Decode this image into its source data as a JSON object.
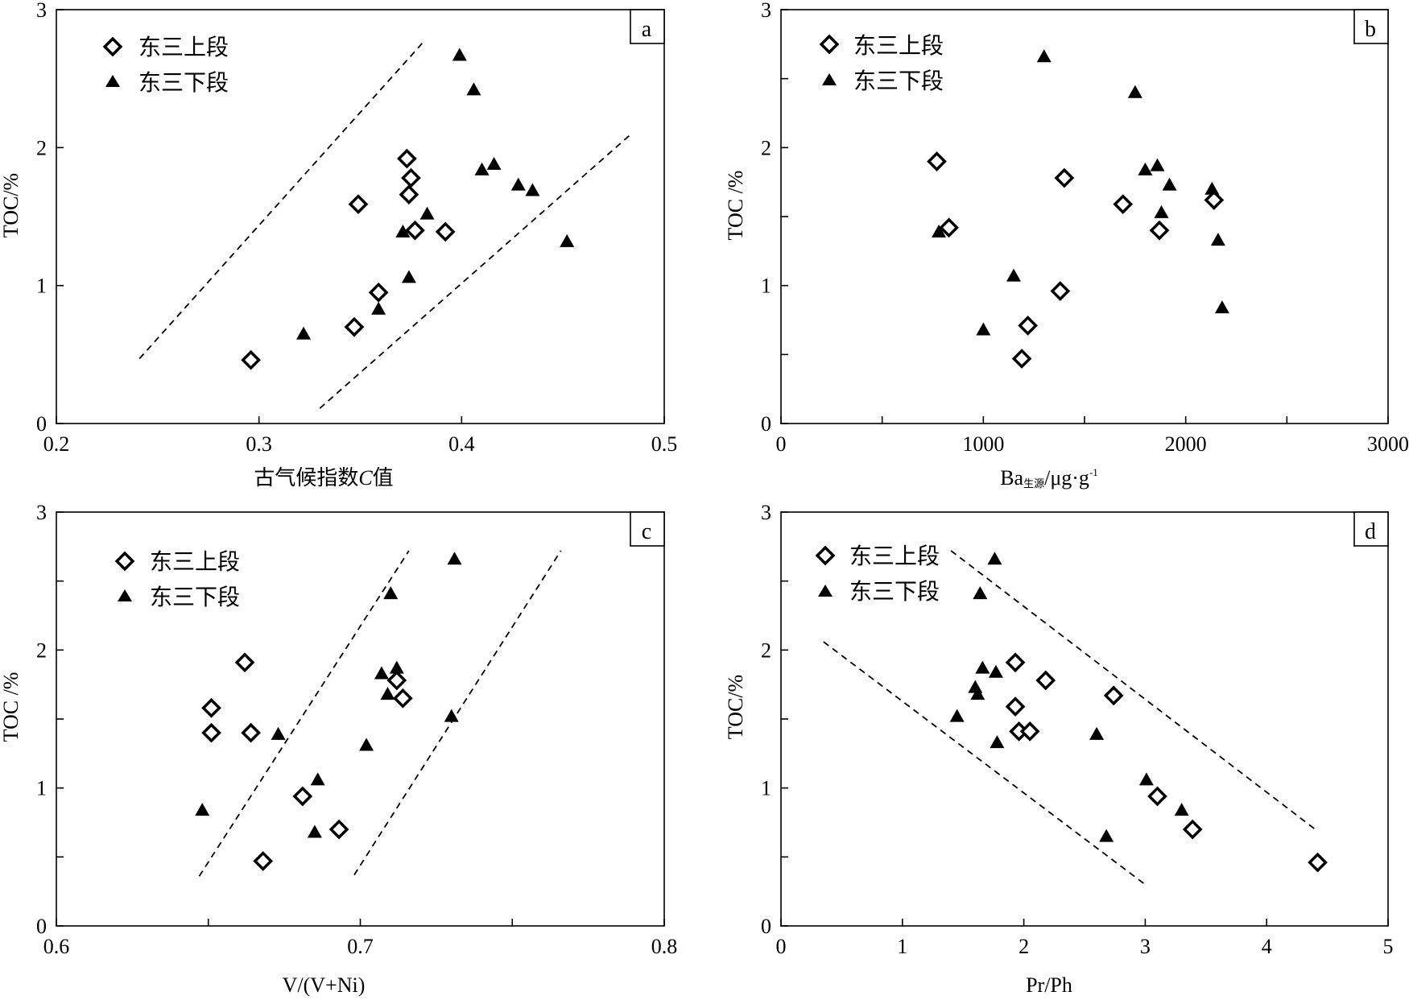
{
  "legend": {
    "upper": "东三上段",
    "lower": "东三下段"
  },
  "colors": {
    "ink": "#000000",
    "background": "#ffffff"
  },
  "chart_data": [
    {
      "type": "scatter",
      "panel": "a",
      "xlabel_main": "古气候指数",
      "xlabel_var": "C",
      "xlabel_tail": "值",
      "ylabel": "TOC/%",
      "xlim": [
        0.2,
        0.5
      ],
      "ylim": [
        0,
        3
      ],
      "xticks": [
        0.2,
        0.3,
        0.4,
        0.5
      ],
      "xticklabels": [
        "0.2",
        "0.3",
        "0.4",
        "0.5"
      ],
      "yticks": [
        0,
        1,
        2,
        3
      ],
      "yticklabels": [
        "0",
        "1",
        "2",
        "3"
      ],
      "legend_position": "top-left",
      "series": [
        {
          "name": "东三上段",
          "marker": "diamond-open",
          "points": [
            [
              0.296,
              0.46
            ],
            [
              0.347,
              0.7
            ],
            [
              0.349,
              1.59
            ],
            [
              0.359,
              0.95
            ],
            [
              0.373,
              1.92
            ],
            [
              0.374,
              1.66
            ],
            [
              0.375,
              1.78
            ],
            [
              0.377,
              1.4
            ],
            [
              0.392,
              1.39
            ]
          ]
        },
        {
          "name": "东三下段",
          "marker": "triangle-filled",
          "points": [
            [
              0.322,
              0.65
            ],
            [
              0.359,
              0.83
            ],
            [
              0.371,
              1.39
            ],
            [
              0.374,
              1.06
            ],
            [
              0.383,
              1.52
            ],
            [
              0.399,
              2.67
            ],
            [
              0.406,
              2.42
            ],
            [
              0.41,
              1.84
            ],
            [
              0.416,
              1.88
            ],
            [
              0.428,
              1.73
            ],
            [
              0.435,
              1.69
            ],
            [
              0.452,
              1.32
            ]
          ]
        }
      ],
      "guide_lines": [
        [
          [
            0.241,
            0.47
          ],
          [
            0.382,
            2.78
          ]
        ],
        [
          [
            0.33,
            0.11
          ],
          [
            0.483,
            2.09
          ]
        ]
      ]
    },
    {
      "type": "scatter",
      "panel": "b",
      "xlabel_main": "Ba",
      "xlabel_sub": "生源",
      "xlabel_tail": "/μg·g",
      "xlabel_sup": "-1",
      "ylabel": "TOC /%",
      "xlim": [
        0,
        3000
      ],
      "ylim": [
        0,
        3
      ],
      "xticks": [
        0,
        1000,
        2000,
        3000
      ],
      "xticklabels": [
        "0",
        "1000",
        "2000",
        "3000"
      ],
      "yticks": [
        0,
        1,
        2,
        3
      ],
      "yticklabels": [
        "0",
        "1",
        "2",
        "3"
      ],
      "minor_xticks": [
        500,
        1500,
        2500
      ],
      "minor_yticks": [
        0.5,
        1.5,
        2.5
      ],
      "legend_position": "top-left",
      "series": [
        {
          "name": "东三上段",
          "marker": "diamond-open",
          "points": [
            [
              770,
              1.9
            ],
            [
              830,
              1.42
            ],
            [
              1190,
              0.47
            ],
            [
              1220,
              0.71
            ],
            [
              1380,
              0.96
            ],
            [
              1400,
              1.78
            ],
            [
              1690,
              1.59
            ],
            [
              1870,
              1.4
            ],
            [
              2140,
              1.62
            ]
          ]
        },
        {
          "name": "东三下段",
          "marker": "triangle-filled",
          "points": [
            [
              780,
              1.39
            ],
            [
              1000,
              0.68
            ],
            [
              1150,
              1.07
            ],
            [
              1300,
              2.66
            ],
            [
              1750,
              2.4
            ],
            [
              1800,
              1.84
            ],
            [
              1860,
              1.87
            ],
            [
              1880,
              1.53
            ],
            [
              1920,
              1.73
            ],
            [
              2130,
              1.7
            ],
            [
              2160,
              1.33
            ],
            [
              2180,
              0.84
            ]
          ]
        }
      ]
    },
    {
      "type": "scatter",
      "panel": "c",
      "xlabel_main": "V/(V+Ni)",
      "ylabel": "TOC /%",
      "xlim": [
        0.6,
        0.8
      ],
      "ylim": [
        0,
        3
      ],
      "xticks": [
        0.6,
        0.7,
        0.8
      ],
      "xticklabels": [
        "0.6",
        "0.7",
        "0.8"
      ],
      "yticks": [
        0,
        1,
        2,
        3
      ],
      "yticklabels": [
        "0",
        "1",
        "2",
        "3"
      ],
      "minor_xticks": [
        0.65,
        0.75
      ],
      "minor_yticks": [
        0.5,
        1.5,
        2.5
      ],
      "legend_position": "top-left",
      "series": [
        {
          "name": "东三上段",
          "marker": "diamond-open",
          "points": [
            [
              0.651,
              1.58
            ],
            [
              0.651,
              1.4
            ],
            [
              0.662,
              1.91
            ],
            [
              0.664,
              1.4
            ],
            [
              0.668,
              0.47
            ],
            [
              0.681,
              0.94
            ],
            [
              0.693,
              0.7
            ],
            [
              0.712,
              1.78
            ],
            [
              0.714,
              1.65
            ]
          ]
        },
        {
          "name": "东三下段",
          "marker": "triangle-filled",
          "points": [
            [
              0.648,
              0.84
            ],
            [
              0.673,
              1.39
            ],
            [
              0.685,
              0.68
            ],
            [
              0.686,
              1.06
            ],
            [
              0.702,
              1.31
            ],
            [
              0.707,
              1.83
            ],
            [
              0.709,
              1.68
            ],
            [
              0.71,
              2.41
            ],
            [
              0.712,
              1.87
            ],
            [
              0.73,
              1.52
            ],
            [
              0.731,
              2.66
            ]
          ]
        }
      ],
      "guide_lines": [
        [
          [
            0.647,
            0.36
          ],
          [
            0.716,
            2.72
          ]
        ],
        [
          [
            0.698,
            0.37
          ],
          [
            0.766,
            2.72
          ]
        ]
      ]
    },
    {
      "type": "scatter",
      "panel": "d",
      "xlabel_main": "Pr/Ph",
      "ylabel": "TOC/%",
      "xlim": [
        0,
        5
      ],
      "ylim": [
        0,
        3
      ],
      "xticks": [
        0,
        1,
        2,
        3,
        4,
        5
      ],
      "xticklabels": [
        "0",
        "1",
        "2",
        "3",
        "4",
        "5"
      ],
      "yticks": [
        0,
        1,
        2,
        3
      ],
      "yticklabels": [
        "0",
        "1",
        "2",
        "3"
      ],
      "minor_yticks": [
        0.5,
        1.5,
        2.5
      ],
      "legend_position": "top-left",
      "series": [
        {
          "name": "东三上段",
          "marker": "diamond-open",
          "points": [
            [
              1.93,
              1.91
            ],
            [
              1.93,
              1.59
            ],
            [
              1.96,
              1.41
            ],
            [
              2.05,
              1.41
            ],
            [
              2.18,
              1.78
            ],
            [
              2.74,
              1.67
            ],
            [
              3.1,
              0.94
            ],
            [
              3.39,
              0.7
            ],
            [
              4.42,
              0.46
            ]
          ]
        },
        {
          "name": "东三下段",
          "marker": "triangle-filled",
          "points": [
            [
              1.45,
              1.52
            ],
            [
              1.6,
              1.73
            ],
            [
              1.62,
              1.68
            ],
            [
              1.64,
              2.41
            ],
            [
              1.66,
              1.87
            ],
            [
              1.76,
              2.66
            ],
            [
              1.77,
              1.84
            ],
            [
              1.78,
              1.33
            ],
            [
              2.6,
              1.39
            ],
            [
              2.68,
              0.65
            ],
            [
              3.01,
              1.06
            ],
            [
              3.3,
              0.84
            ]
          ]
        }
      ],
      "guide_lines": [
        [
          [
            0.35,
            2.06
          ],
          [
            3.0,
            0.3
          ]
        ],
        [
          [
            1.4,
            2.72
          ],
          [
            4.4,
            0.7
          ]
        ]
      ]
    }
  ]
}
